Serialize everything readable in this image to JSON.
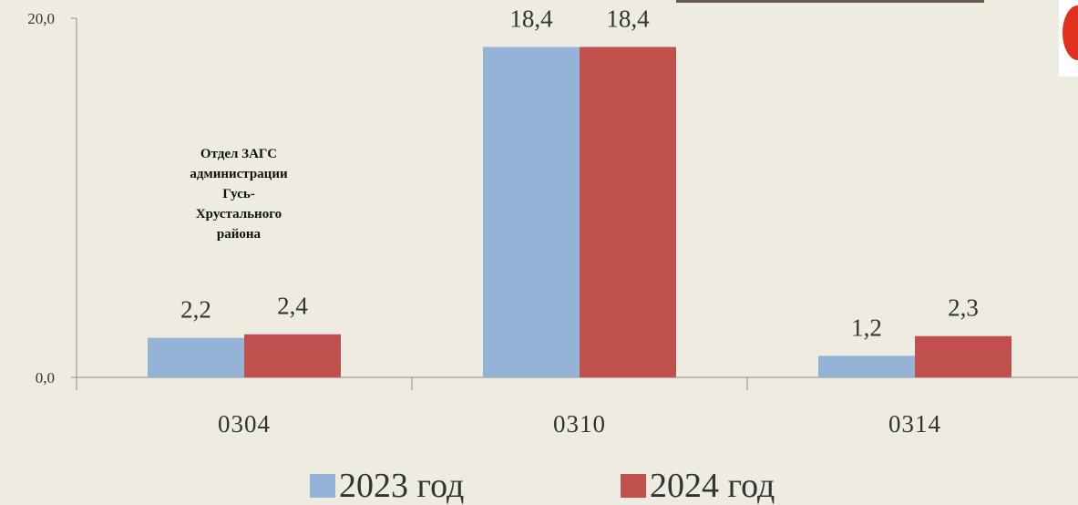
{
  "chart_data": {
    "type": "bar",
    "categories": [
      "0304",
      "0310",
      "0314"
    ],
    "series": [
      {
        "name": "2023 год",
        "values": [
          2.2,
          18.4,
          1.2
        ],
        "labels": [
          "2,2",
          "18,4",
          "1,2"
        ],
        "color": "#95b3d7"
      },
      {
        "name": "2024 год",
        "values": [
          2.4,
          18.4,
          2.3
        ],
        "labels": [
          "2,4",
          "18,4",
          "2,3"
        ],
        "color": "#c0504d"
      }
    ],
    "ylim": [
      0,
      20
    ],
    "yticks": [
      0,
      20
    ],
    "ytick_labels": [
      "0,0",
      "20,0"
    ],
    "legend_position": "bottom",
    "annotation": [
      "Отдел ЗАГС",
      "администрации",
      "Гусь-",
      "Хрустального",
      "района"
    ],
    "title": "",
    "xlabel": "",
    "ylabel": ""
  }
}
